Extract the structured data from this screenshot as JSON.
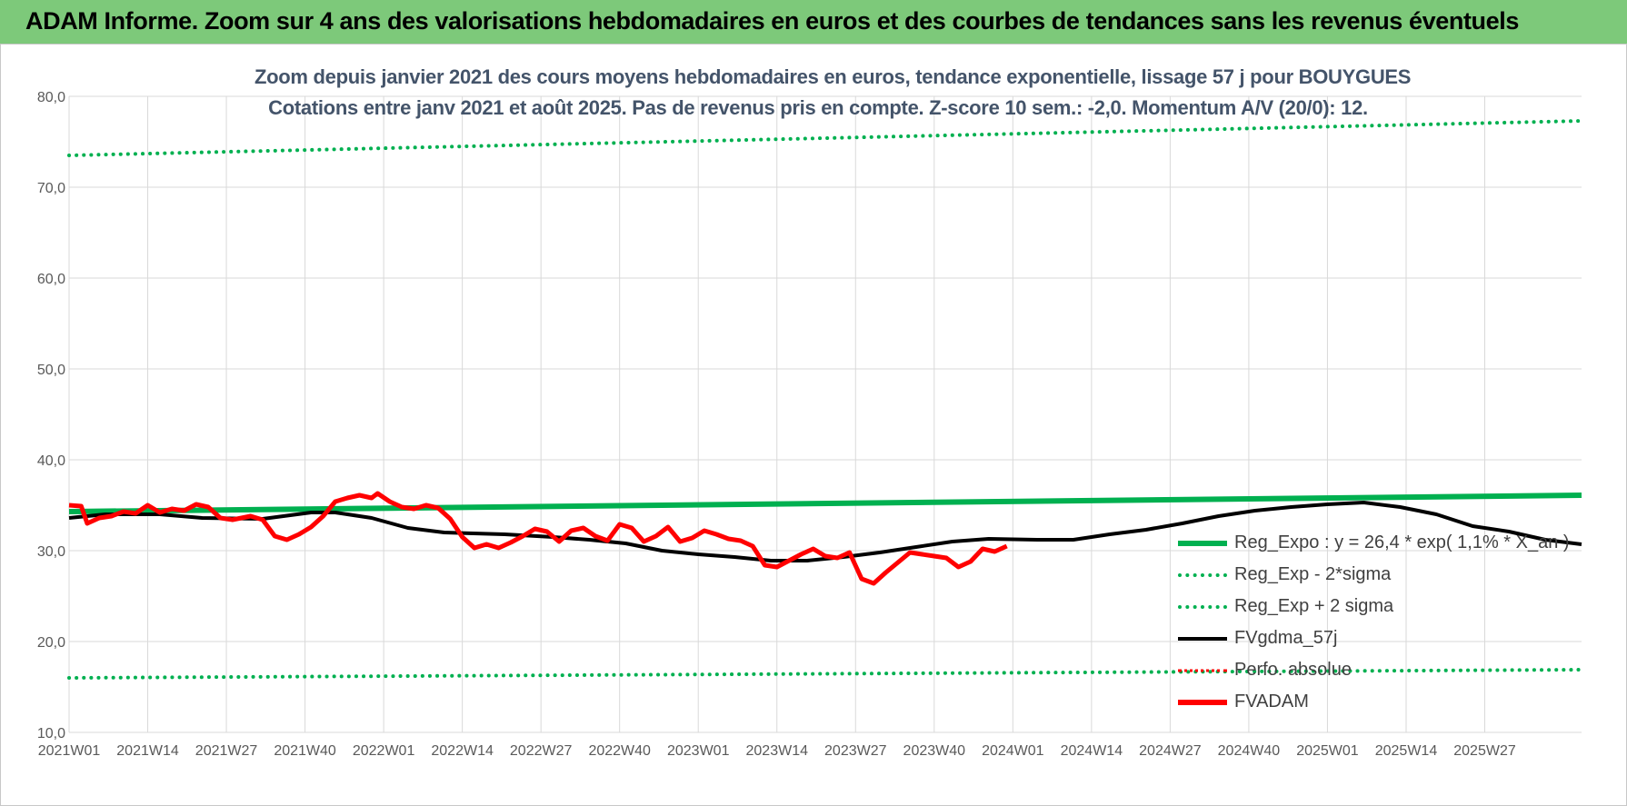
{
  "header": {
    "title": "ADAM Informe. Zoom sur 4 ans des valorisations hebdomadaires en euros et des courbes de tendances sans les revenus éventuels"
  },
  "chart_data": {
    "type": "line",
    "title_line1": "Zoom depuis janvier 2021 des cours moyens hebdomadaires en euros, tendance exponentielle, lissage 57 j pour BOUYGUES",
    "title_line2": "Cotations entre janv 2021 et août 2025. Pas de revenus pris en compte. Z-score 10 sem.: -2,0. Momentum A/V (20/0): 12.",
    "xlabel": "",
    "ylabel": "",
    "ylim": [
      10,
      80
    ],
    "yticks": [
      "10,0",
      "20,0",
      "30,0",
      "40,0",
      "50,0",
      "60,0",
      "70,0",
      "80,0"
    ],
    "x_tick_labels": [
      "2021W01",
      "2021W14",
      "2021W27",
      "2021W40",
      "2022W01",
      "2022W14",
      "2022W27",
      "2022W40",
      "2023W01",
      "2023W14",
      "2023W27",
      "2023W40",
      "2024W01",
      "2024W14",
      "2024W27",
      "2024W40",
      "2025W01",
      "2025W14",
      "2025W27"
    ],
    "x_range_weeks": [
      0,
      250
    ],
    "grid": true,
    "legend_position": "bottom-right",
    "series": [
      {
        "name": "Reg_Expo : y = 26,4 * exp( 1,1% *  X_an )",
        "color": "#00b050",
        "style": "solid-thick",
        "points": [
          [
            0,
            34.3
          ],
          [
            250,
            36.1
          ]
        ]
      },
      {
        "name": "Reg_Exp - 2*sigma",
        "color": "#00b050",
        "style": "dotted",
        "points": [
          [
            0,
            16.0
          ],
          [
            250,
            16.9
          ]
        ]
      },
      {
        "name": "Reg_Exp + 2 sigma",
        "color": "#00b050",
        "style": "dotted",
        "points": [
          [
            0,
            73.5
          ],
          [
            250,
            77.3
          ]
        ]
      },
      {
        "name": "FVgdma_57j",
        "color": "#000000",
        "style": "solid",
        "points": [
          [
            0,
            33.6
          ],
          [
            6,
            34.0
          ],
          [
            15,
            34.0
          ],
          [
            22,
            33.6
          ],
          [
            32,
            33.5
          ],
          [
            40,
            34.2
          ],
          [
            44,
            34.2
          ],
          [
            50,
            33.6
          ],
          [
            56,
            32.5
          ],
          [
            62,
            32.0
          ],
          [
            72,
            31.8
          ],
          [
            80,
            31.5
          ],
          [
            86,
            31.2
          ],
          [
            92,
            30.8
          ],
          [
            98,
            30.0
          ],
          [
            104,
            29.6
          ],
          [
            110,
            29.3
          ],
          [
            116,
            28.9
          ],
          [
            122,
            28.9
          ],
          [
            128,
            29.3
          ],
          [
            134,
            29.8
          ],
          [
            140,
            30.4
          ],
          [
            146,
            31.0
          ],
          [
            152,
            31.3
          ],
          [
            160,
            31.2
          ],
          [
            166,
            31.2
          ],
          [
            172,
            31.8
          ],
          [
            178,
            32.3
          ],
          [
            184,
            33.0
          ],
          [
            190,
            33.8
          ],
          [
            196,
            34.4
          ],
          [
            202,
            34.8
          ],
          [
            208,
            35.1
          ],
          [
            214,
            35.3
          ],
          [
            220,
            34.8
          ],
          [
            226,
            34.0
          ],
          [
            232,
            32.7
          ],
          [
            238,
            32.1
          ],
          [
            244,
            31.2
          ],
          [
            250,
            30.7
          ]
        ]
      },
      {
        "name": "Perfo. absolue",
        "color": "#ff0000",
        "style": "dotted-thin",
        "points": []
      },
      {
        "name": "FVADAM",
        "color": "#ff0000",
        "style": "solid-thick",
        "points": [
          [
            0,
            35.0
          ],
          [
            2,
            34.9
          ],
          [
            3,
            33.0
          ],
          [
            5,
            33.6
          ],
          [
            7,
            33.8
          ],
          [
            9,
            34.3
          ],
          [
            11,
            34.1
          ],
          [
            13,
            35.0
          ],
          [
            15,
            34.2
          ],
          [
            17,
            34.6
          ],
          [
            19,
            34.4
          ],
          [
            21,
            35.1
          ],
          [
            23,
            34.8
          ],
          [
            25,
            33.6
          ],
          [
            27,
            33.4
          ],
          [
            30,
            33.8
          ],
          [
            32,
            33.4
          ],
          [
            34,
            31.6
          ],
          [
            36,
            31.2
          ],
          [
            38,
            31.8
          ],
          [
            40,
            32.6
          ],
          [
            42,
            33.8
          ],
          [
            44,
            35.4
          ],
          [
            46,
            35.8
          ],
          [
            48,
            36.1
          ],
          [
            50,
            35.8
          ],
          [
            51,
            36.3
          ],
          [
            53,
            35.4
          ],
          [
            55,
            34.8
          ],
          [
            57,
            34.6
          ],
          [
            59,
            35.0
          ],
          [
            61,
            34.7
          ],
          [
            63,
            33.5
          ],
          [
            65,
            31.5
          ],
          [
            67,
            30.3
          ],
          [
            69,
            30.7
          ],
          [
            71,
            30.3
          ],
          [
            73,
            30.9
          ],
          [
            75,
            31.6
          ],
          [
            77,
            32.4
          ],
          [
            79,
            32.1
          ],
          [
            81,
            31.0
          ],
          [
            83,
            32.2
          ],
          [
            85,
            32.5
          ],
          [
            87,
            31.6
          ],
          [
            89,
            31.1
          ],
          [
            91,
            32.9
          ],
          [
            93,
            32.5
          ],
          [
            95,
            31.0
          ],
          [
            97,
            31.6
          ],
          [
            99,
            32.6
          ],
          [
            101,
            31.0
          ],
          [
            103,
            31.4
          ],
          [
            105,
            32.2
          ],
          [
            107,
            31.8
          ],
          [
            109,
            31.3
          ],
          [
            111,
            31.1
          ],
          [
            113,
            30.5
          ],
          [
            115,
            28.4
          ],
          [
            117,
            28.2
          ],
          [
            119,
            28.9
          ],
          [
            121,
            29.6
          ],
          [
            123,
            30.2
          ],
          [
            125,
            29.4
          ],
          [
            127,
            29.2
          ],
          [
            129,
            29.8
          ],
          [
            131,
            26.9
          ],
          [
            133,
            26.4
          ],
          [
            135,
            27.6
          ],
          [
            137,
            28.7
          ],
          [
            139,
            29.8
          ],
          [
            141,
            29.6
          ],
          [
            143,
            29.4
          ],
          [
            145,
            29.2
          ],
          [
            147,
            28.2
          ],
          [
            149,
            28.8
          ],
          [
            151,
            30.2
          ],
          [
            153,
            29.9
          ],
          [
            155,
            30.5
          ]
        ]
      }
    ]
  }
}
